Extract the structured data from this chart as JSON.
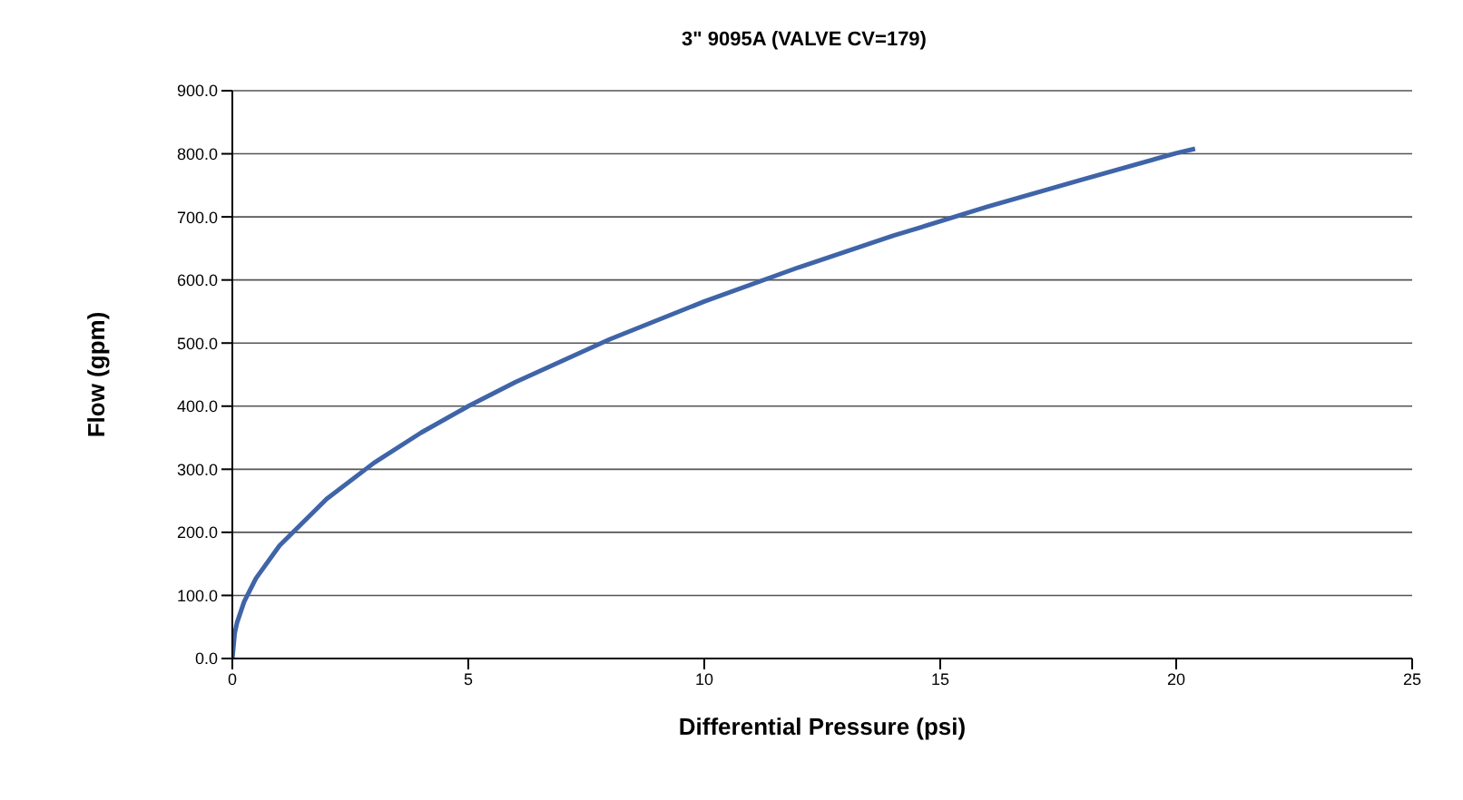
{
  "chart_data": {
    "type": "line",
    "title": "3\" 9095A (VALVE CV=179)",
    "xlabel": "Differential Pressure (psi)",
    "ylabel": "Flow (gpm)",
    "x": [
      0,
      0.05,
      0.1,
      0.25,
      0.5,
      1,
      2,
      3,
      4,
      5,
      6,
      8,
      10,
      12,
      14,
      16,
      18,
      20,
      20.4
    ],
    "series": [
      {
        "color": "#3f64a8",
        "values": [
          0,
          40,
          57,
          90,
          127,
          179,
          253,
          310,
          358,
          400,
          438,
          506,
          566,
          620,
          670,
          716,
          759,
          801,
          808
        ]
      }
    ],
    "xlim": [
      0,
      25
    ],
    "xticks": [
      0,
      5,
      10,
      15,
      20,
      25
    ],
    "ylim": [
      0,
      900
    ],
    "yticks": [
      {
        "value": 0,
        "label": "0.0"
      },
      {
        "value": 100,
        "label": "100.0"
      },
      {
        "value": 200,
        "label": "200.0"
      },
      {
        "value": 300,
        "label": "300.0"
      },
      {
        "value": 400,
        "label": "400.0"
      },
      {
        "value": 500,
        "label": "500.0"
      },
      {
        "value": 600,
        "label": "600.0"
      },
      {
        "value": 700,
        "label": "700.0"
      },
      {
        "value": 800,
        "label": "800.0"
      },
      {
        "value": 900,
        "label": "900.0"
      }
    ],
    "grid": "y",
    "legend": false,
    "marker": "none",
    "line_style": "solid"
  }
}
